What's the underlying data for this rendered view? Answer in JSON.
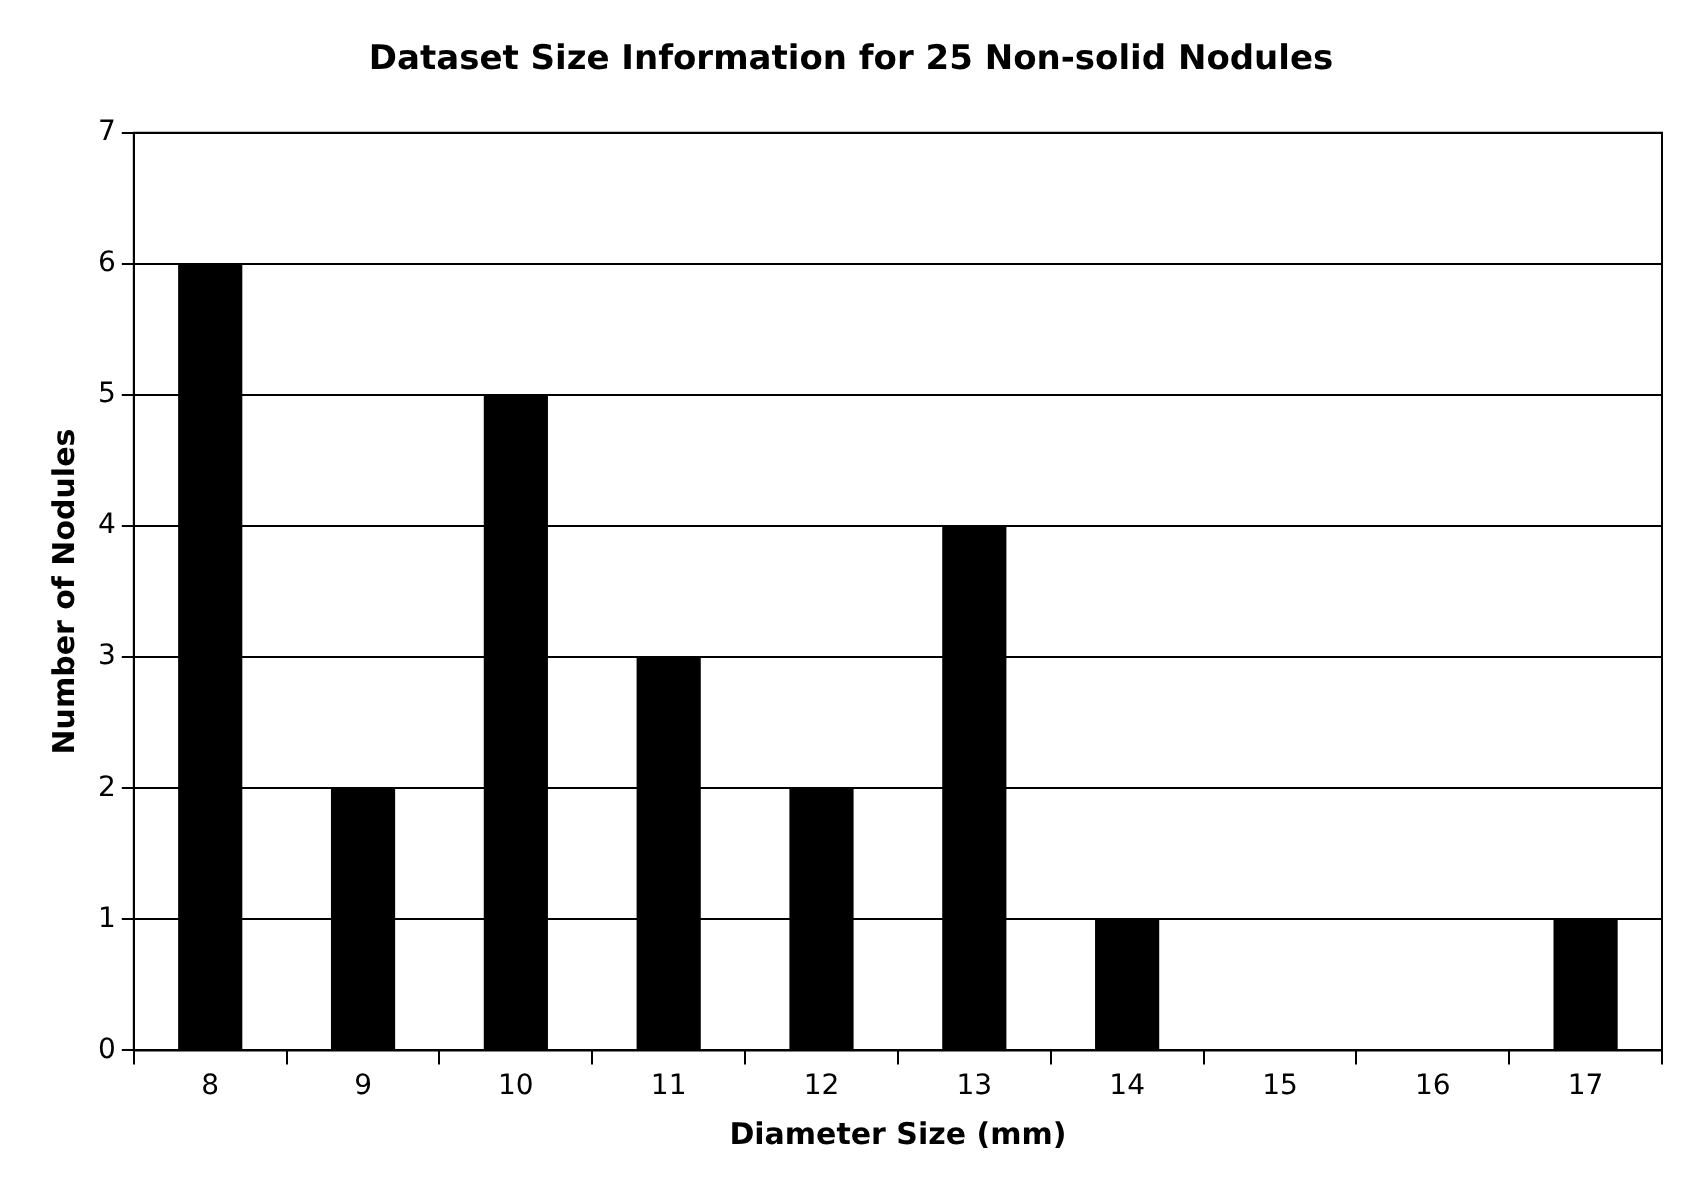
{
  "chart_data": {
    "type": "bar",
    "title": "Dataset Size Information for 25 Non-solid Nodules",
    "xlabel": "Diameter Size (mm)",
    "ylabel": "Number of Nodules",
    "categories": [
      "8",
      "9",
      "10",
      "11",
      "12",
      "13",
      "14",
      "15",
      "16",
      "17"
    ],
    "values": [
      6,
      2,
      5,
      3,
      2,
      4,
      1,
      0,
      0,
      1
    ],
    "color": "#000000",
    "ylim": [
      0,
      7
    ],
    "yticks": [
      0,
      1,
      2,
      3,
      4,
      5,
      6,
      7
    ],
    "grid": "y",
    "legend": false
  }
}
